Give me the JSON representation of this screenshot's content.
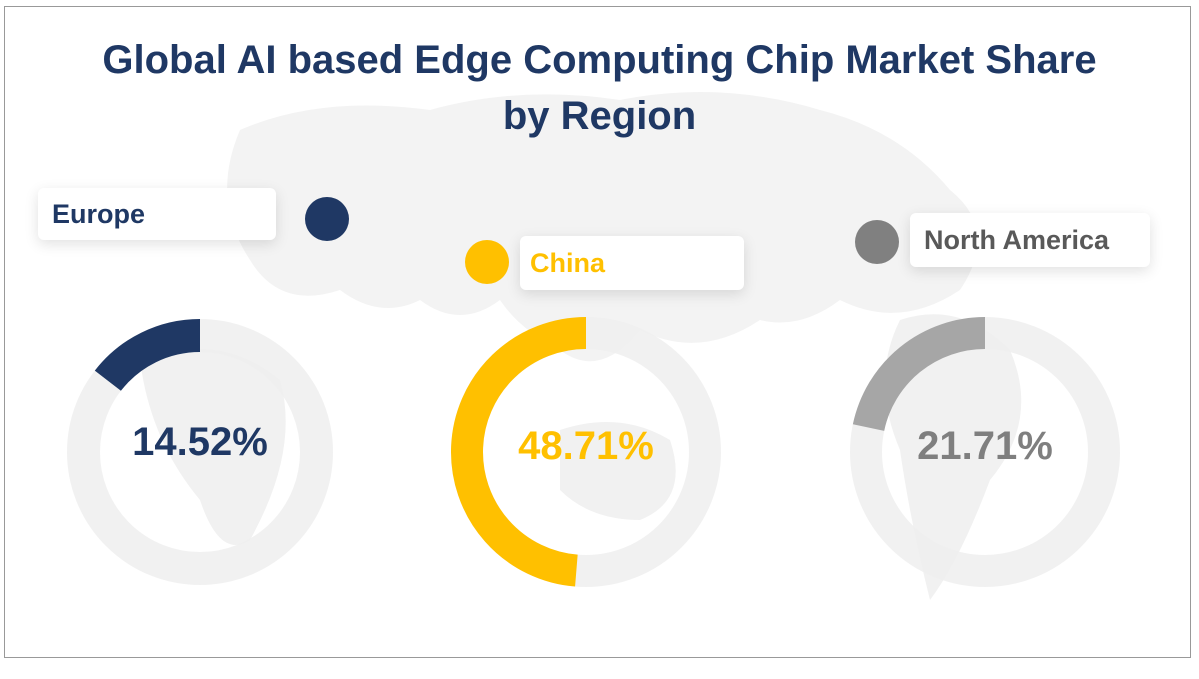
{
  "chart_data": {
    "type": "donut",
    "title": "Global  AI based Edge Computing Chip Market Share by Region",
    "title_lines": [
      "Global  AI based Edge Computing Chip Market Share",
      "by Region"
    ],
    "unit": "%",
    "track_color": "#eeeeee",
    "series": [
      {
        "name": "Europe",
        "value": 14.52,
        "label": "14.52%",
        "color": "#1f3864",
        "text_color": "#1f3864"
      },
      {
        "name": "China",
        "value": 48.71,
        "label": "48.71%",
        "color": "#ffc000",
        "text_color": "#ffc000"
      },
      {
        "name": "North America",
        "value": 21.71,
        "label": "21.71%",
        "color": "#a6a6a6",
        "text_color": "#7f7f7f",
        "dot_color": "#808080"
      }
    ]
  }
}
